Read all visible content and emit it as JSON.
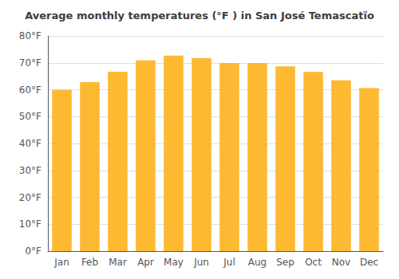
{
  "chart_data": {
    "type": "bar",
    "title": "Average monthly temperatures (°F ) in San José Temascatĩo",
    "categories": [
      "Jan",
      "Feb",
      "Mar",
      "Apr",
      "May",
      "Jun",
      "Jul",
      "Aug",
      "Sep",
      "Oct",
      "Nov",
      "Dec"
    ],
    "values": [
      59.9,
      62.8,
      66.7,
      70.9,
      72.7,
      71.8,
      69.9,
      69.9,
      68.7,
      66.6,
      63.5,
      60.6
    ],
    "color": "#FDB931",
    "ylim": [
      0,
      80
    ],
    "yticks": [
      {
        "value": 0,
        "label": "0°F"
      },
      {
        "value": 10,
        "label": "10°F"
      },
      {
        "value": 20,
        "label": "20°F"
      },
      {
        "value": 30,
        "label": "30°F"
      },
      {
        "value": 40,
        "label": "40°F"
      },
      {
        "value": 50,
        "label": "50°F"
      },
      {
        "value": 60,
        "label": "60°F"
      },
      {
        "value": 70,
        "label": "70°F"
      },
      {
        "value": 80,
        "label": "80°F"
      }
    ],
    "grid": true
  }
}
